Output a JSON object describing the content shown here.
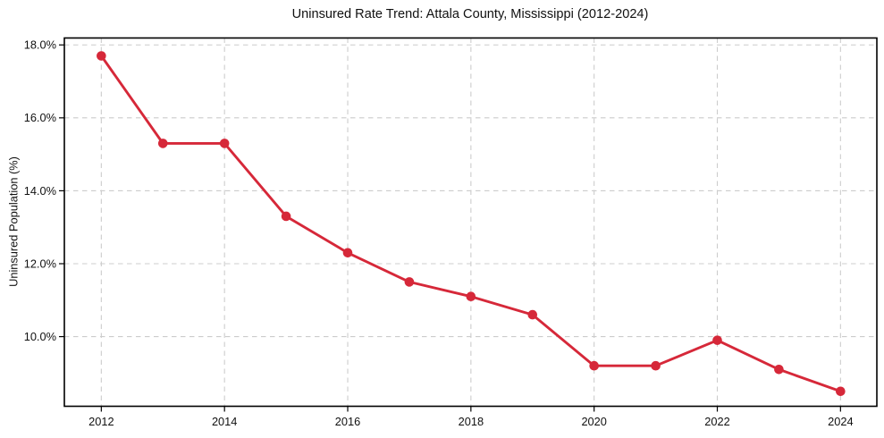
{
  "chart_data": {
    "type": "line",
    "title": "Uninsured Rate Trend: Attala County, Mississippi (2012-2024)",
    "xlabel": "",
    "ylabel": "Uninsured Population (%)",
    "x": [
      2012,
      2013,
      2014,
      2015,
      2016,
      2017,
      2018,
      2019,
      2020,
      2021,
      2022,
      2023,
      2024
    ],
    "series": [
      {
        "name": "Uninsured rate",
        "values": [
          17.7,
          15.3,
          15.3,
          13.3,
          12.3,
          11.5,
          11.1,
          10.6,
          9.2,
          9.2,
          9.9,
          9.1,
          8.5
        ],
        "marker": "circle"
      }
    ],
    "xticks": {
      "values": [
        2012,
        2014,
        2016,
        2018,
        2020,
        2022,
        2024
      ],
      "labels": [
        "2012",
        "2014",
        "2016",
        "2018",
        "2020",
        "2022",
        "2024"
      ]
    },
    "yticks": {
      "values": [
        10,
        12,
        14,
        16,
        18
      ],
      "labels": [
        "10.0%",
        "12.0%",
        "14.0%",
        "16.0%",
        "18.0%"
      ]
    },
    "xlim": [
      2011.4,
      2024.59
    ],
    "ylim": [
      8.09,
      18.19
    ],
    "grid": "both, dashed, at ticks only",
    "legend": "none",
    "colors": {
      "line": "#d62839",
      "marker": "#d62839",
      "grid": "#cccccc",
      "spine": "#000000",
      "text": "#111111",
      "background": "#ffffff"
    }
  }
}
